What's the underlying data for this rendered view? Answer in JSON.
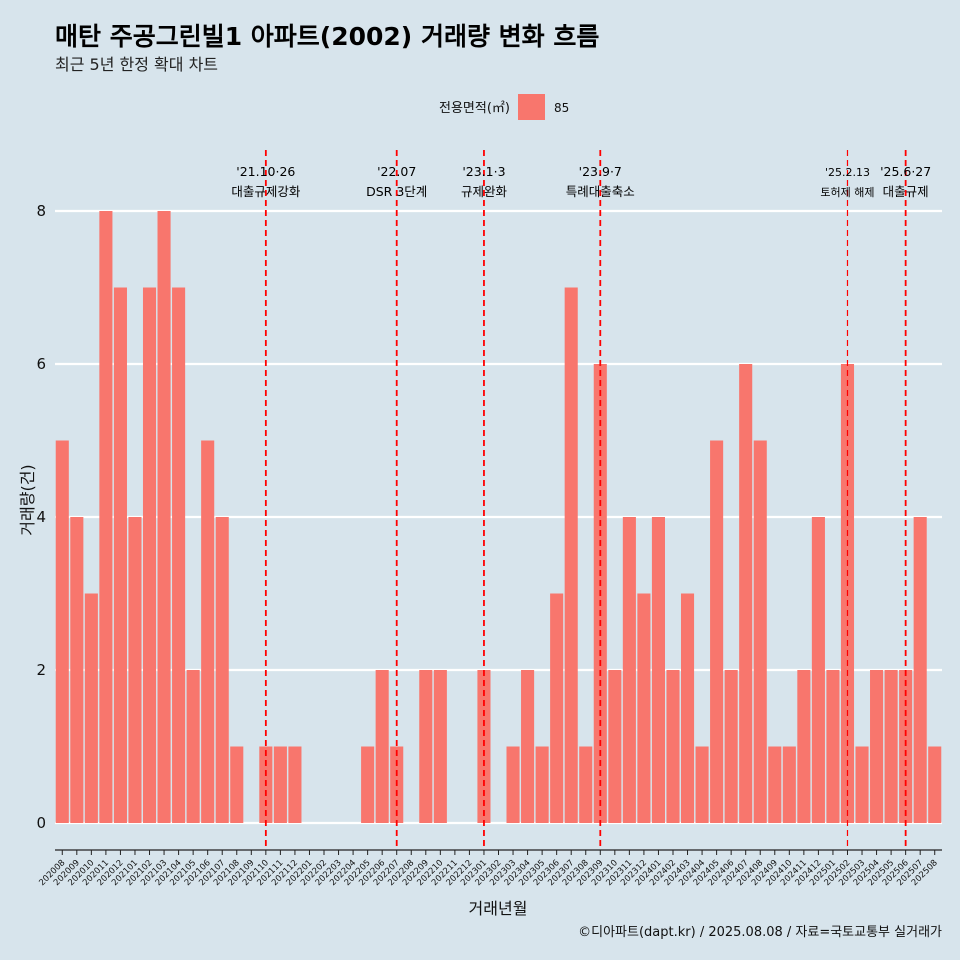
{
  "page": {
    "title": "매탄 주공그린빌1 아파트(2002) 거래량 변화 흐름",
    "subtitle": "최근 5년 한정 확대 차트",
    "caption": "©디아파트(dapt.kr) / 2025.08.08 / 자료=국토교통부 실거래가"
  },
  "legend": {
    "title": "전용면적(㎡)",
    "items": [
      {
        "label": "85",
        "color": "#f8766d"
      }
    ]
  },
  "colors": {
    "background": "#d7e4ec",
    "bar": "#f8766d",
    "gridline": "#ffffff",
    "event_line": "#ff0000"
  },
  "chart_data": {
    "type": "bar",
    "xlabel": "거래년월",
    "ylabel": "거래량(건)",
    "ylim": [
      0,
      8
    ],
    "yticks": [
      0,
      2,
      4,
      6,
      8
    ],
    "grid": true,
    "legend_position": "top",
    "categories": [
      "202008",
      "202009",
      "202010",
      "202011",
      "202012",
      "202101",
      "202102",
      "202103",
      "202104",
      "202105",
      "202106",
      "202107",
      "202108",
      "202109",
      "202110",
      "202111",
      "202112",
      "202201",
      "202202",
      "202203",
      "202204",
      "202205",
      "202206",
      "202207",
      "202208",
      "202209",
      "202210",
      "202211",
      "202212",
      "202301",
      "202302",
      "202303",
      "202304",
      "202305",
      "202306",
      "202307",
      "202308",
      "202309",
      "202310",
      "202311",
      "202312",
      "202401",
      "202402",
      "202403",
      "202404",
      "202405",
      "202406",
      "202407",
      "202408",
      "202409",
      "202410",
      "202411",
      "202412",
      "202501",
      "202502",
      "202503",
      "202504",
      "202505",
      "202506",
      "202507",
      "202508"
    ],
    "series": [
      {
        "name": "85",
        "values": [
          5,
          4,
          3,
          8,
          7,
          4,
          7,
          8,
          7,
          2,
          5,
          4,
          1,
          0,
          1,
          1,
          1,
          0,
          0,
          0,
          0,
          1,
          2,
          1,
          0,
          2,
          2,
          0,
          0,
          2,
          0,
          1,
          2,
          1,
          3,
          7,
          1,
          6,
          2,
          4,
          3,
          4,
          2,
          3,
          1,
          5,
          2,
          6,
          5,
          1,
          1,
          2,
          4,
          2,
          6,
          1,
          2,
          2,
          2,
          4,
          1
        ]
      }
    ],
    "events": [
      {
        "date_label": "'21.10·26",
        "label": "대출규제강화",
        "x": "202110"
      },
      {
        "date_label": "'22.07",
        "label": "DSR 3단계",
        "x": "202207"
      },
      {
        "date_label": "'23.1·3",
        "label": "규제완화",
        "x": "202301"
      },
      {
        "date_label": "'23.9·7",
        "label": "특례대출축소",
        "x": "202309"
      },
      {
        "date_label": "'25.2.13",
        "label": "토허제 해제",
        "x": "202502"
      },
      {
        "date_label": "'25.6·27",
        "label": "대출규제",
        "x": "202506"
      }
    ]
  }
}
